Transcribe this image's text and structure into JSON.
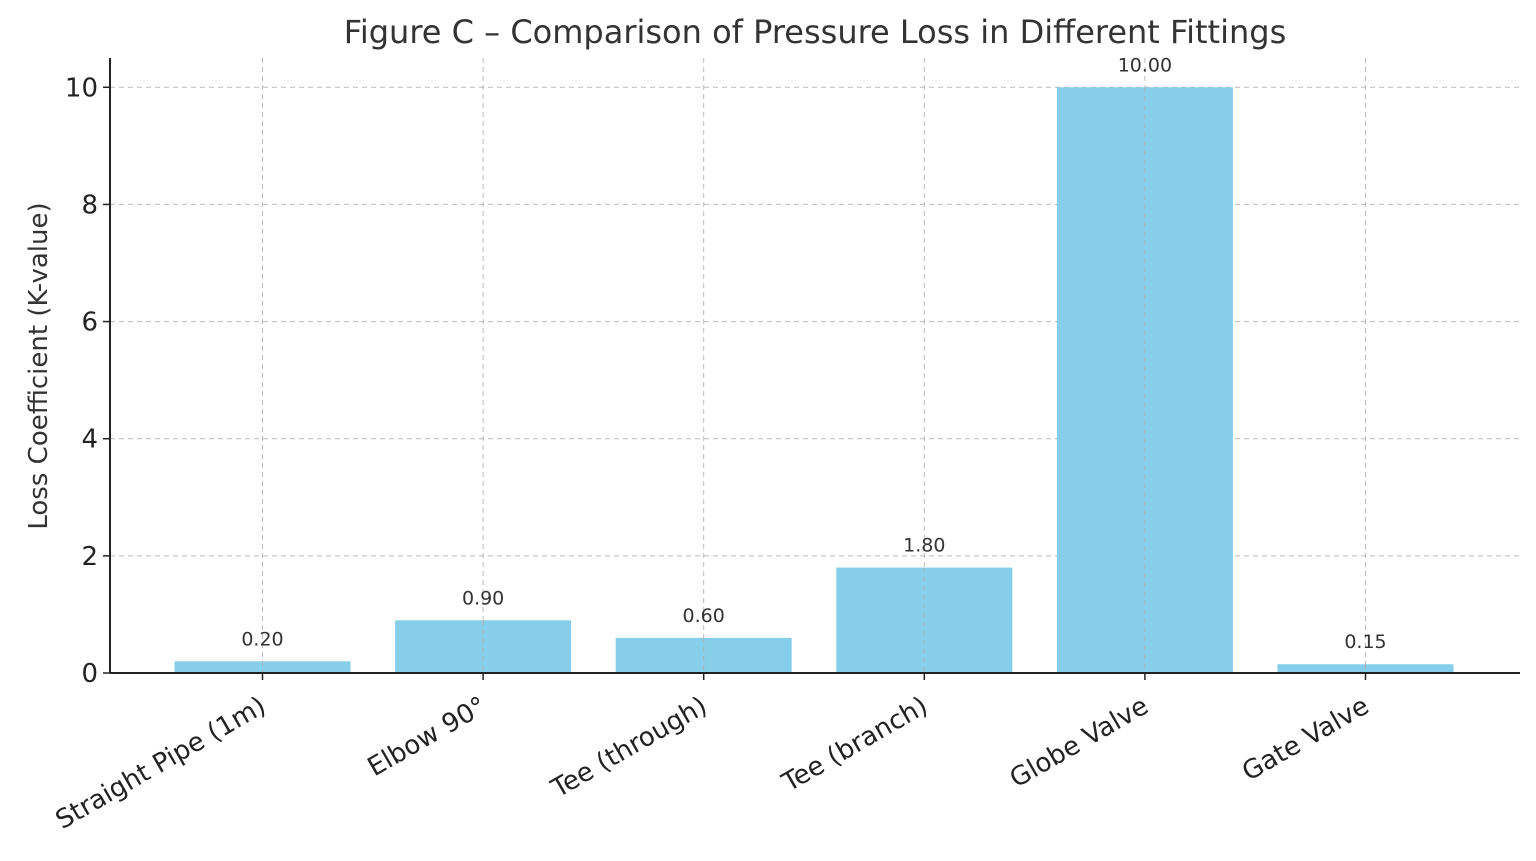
{
  "chart_data": {
    "type": "bar",
    "title": "Figure C – Comparison of Pressure Loss in Different Fittings",
    "xlabel": "",
    "ylabel": "Loss Coefficient (K-value)",
    "categories": [
      "Straight Pipe (1m)",
      "Elbow 90°",
      "Tee (through)",
      "Tee (branch)",
      "Globe Valve",
      "Gate Valve"
    ],
    "values": [
      0.2,
      0.9,
      0.6,
      1.8,
      10.0,
      0.15
    ],
    "value_labels": [
      "0.20",
      "0.90",
      "0.60",
      "1.80",
      "10.00",
      "0.15"
    ],
    "ylim": [
      0,
      10.5
    ],
    "yticks": [
      0,
      2,
      4,
      6,
      8,
      10
    ],
    "ytick_labels": [
      "0",
      "2",
      "4",
      "6",
      "8",
      "10"
    ],
    "grid": true,
    "bar_color": "#87CEEB"
  }
}
